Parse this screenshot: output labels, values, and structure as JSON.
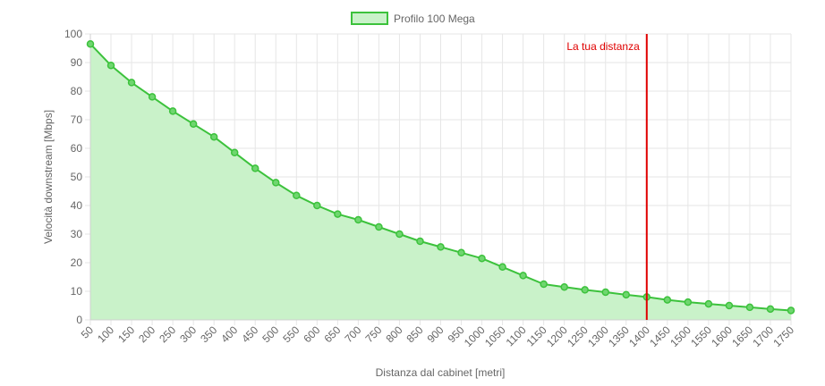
{
  "chart_data": {
    "type": "area",
    "legend": {
      "label": "Profilo 100 Mega",
      "position": "top"
    },
    "xlabel": "Distanza dal cabinet [metri]",
    "ylabel": "Velocità downstream [Mbps]",
    "ylim": [
      0,
      100
    ],
    "yticks": [
      0,
      10,
      20,
      30,
      40,
      50,
      60,
      70,
      80,
      90,
      100
    ],
    "x": [
      50,
      100,
      150,
      200,
      250,
      300,
      350,
      400,
      450,
      500,
      550,
      600,
      650,
      700,
      750,
      800,
      850,
      900,
      950,
      1000,
      1050,
      1100,
      1150,
      1200,
      1250,
      1300,
      1350,
      1400,
      1450,
      1500,
      1550,
      1600,
      1650,
      1700,
      1750
    ],
    "series": [
      {
        "name": "Profilo 100 Mega",
        "values": [
          96.5,
          89,
          83,
          78,
          73,
          68.5,
          64,
          58.5,
          53,
          48,
          43.5,
          40,
          37,
          35,
          32.5,
          30,
          27.5,
          25.5,
          23.5,
          21.5,
          18.5,
          15.5,
          12.5,
          11.5,
          10.5,
          9.7,
          8.8,
          8.0,
          7.0,
          6.2,
          5.6,
          5.0,
          4.4,
          3.8,
          3.3
        ]
      }
    ],
    "annotation": {
      "label": "La tua distanza",
      "x": 1400
    },
    "grid": true,
    "colors": {
      "line": "#3cc23c",
      "fill": "#c9f2c9",
      "point_fill": "#6fd66f",
      "marker": "#e00000",
      "grid": "#e6e6e6",
      "text": "#666666"
    }
  }
}
